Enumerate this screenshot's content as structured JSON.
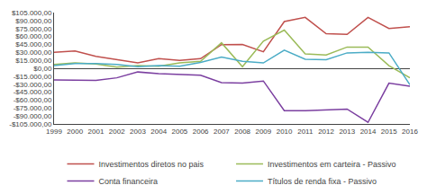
{
  "chart_data": {
    "type": "line",
    "x": [
      1999,
      2000,
      2001,
      2002,
      2003,
      2004,
      2005,
      2006,
      2007,
      2008,
      2009,
      2010,
      2011,
      2012,
      2013,
      2014,
      2015,
      2016
    ],
    "series": [
      {
        "name": "Investimentos diretos no pais",
        "color": "#c0504d",
        "values": [
          30000,
          32500,
          22500,
          16500,
          10000,
          18000,
          15000,
          18000,
          44500,
          45000,
          31000,
          88000,
          96000,
          65000,
          64000,
          96000,
          75000,
          78500
        ]
      },
      {
        "name": "Investimentos em carteira - Passivo",
        "color": "#9bbb59",
        "values": [
          7000,
          10000,
          8000,
          2000,
          5000,
          4000,
          10000,
          13000,
          48000,
          3000,
          51000,
          72000,
          27000,
          25000,
          40000,
          40000,
          5000,
          -18000
        ]
      },
      {
        "name": "Conta financeira",
        "color": "#7b3fa0",
        "values": [
          -22000,
          -23000,
          -23000,
          -18000,
          -7000,
          -10000,
          -12000,
          -13000,
          -27000,
          -28000,
          -24000,
          -80000,
          -80000,
          -78000,
          -77000,
          -102000,
          -28000,
          -34000
        ]
      },
      {
        "name": "Títulos de renda fixa - Passivo",
        "color": "#4bacc6",
        "values": [
          5000,
          9000,
          9000,
          7000,
          3000,
          5000,
          4000,
          11000,
          21000,
          13000,
          10000,
          34000,
          17000,
          16000,
          29000,
          30000,
          29000,
          -31000
        ]
      }
    ],
    "xlim": [
      1999,
      2016
    ],
    "xticks": [
      1999,
      2000,
      2001,
      2002,
      2003,
      2004,
      2005,
      2006,
      2007,
      2008,
      2009,
      2010,
      2011,
      2012,
      2013,
      2014,
      2015,
      2016
    ],
    "ylim": [
      -105000,
      105000
    ],
    "yticks": [
      {
        "value": -105000,
        "label": "-$105.000,00"
      },
      {
        "value": -90000,
        "label": "-$90.000,00"
      },
      {
        "value": -75000,
        "label": "-$75.000,00"
      },
      {
        "value": -60000,
        "label": "-$60.000,00"
      },
      {
        "value": -45000,
        "label": "-$45.000,00"
      },
      {
        "value": -30000,
        "label": "-$30.000,00"
      },
      {
        "value": -15000,
        "label": "-$15.000,00"
      },
      {
        "value": 0,
        "label": "$0,00"
      },
      {
        "value": 15000,
        "label": "$15.000,00"
      },
      {
        "value": 30000,
        "label": "$30.000,00"
      },
      {
        "value": 45000,
        "label": "$45.000,00"
      },
      {
        "value": 60000,
        "label": "$60.000,00"
      },
      {
        "value": 75000,
        "label": "$75.000,00"
      },
      {
        "value": 90000,
        "label": "$90.000,00"
      },
      {
        "value": 105000,
        "label": "$105.000,00"
      }
    ],
    "grid": false,
    "legend": "bottom"
  }
}
